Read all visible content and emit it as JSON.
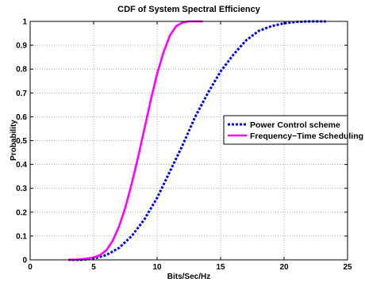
{
  "chart_data": {
    "type": "line",
    "title": "CDF of System Spectral Efficiency",
    "xlabel": "Bits/Sec/Hz",
    "ylabel": "Probability",
    "xlim": [
      0,
      25
    ],
    "ylim": [
      0,
      1
    ],
    "xticks": [
      "0",
      "5",
      "10",
      "15",
      "20",
      "25"
    ],
    "yticks": [
      "0",
      "0.1",
      "0.2",
      "0.3",
      "0.4",
      "0.5",
      "0.6",
      "0.7",
      "0.8",
      "0.9",
      "1"
    ],
    "grid": true,
    "legend_position": "right",
    "series": [
      {
        "name": "Power Control scheme",
        "color": "#0000ff",
        "style": "dotted",
        "x": [
          3.0,
          4.0,
          5.0,
          6.0,
          7.0,
          8.0,
          9.0,
          10.0,
          11.0,
          12.0,
          13.0,
          14.0,
          15.0,
          16.0,
          17.0,
          18.0,
          19.0,
          20.0,
          21.0,
          22.0,
          23.3
        ],
        "y": [
          0.0,
          0.0,
          0.005,
          0.02,
          0.05,
          0.1,
          0.17,
          0.26,
          0.37,
          0.48,
          0.6,
          0.7,
          0.79,
          0.86,
          0.92,
          0.96,
          0.98,
          0.992,
          0.998,
          1.0,
          1.0
        ]
      },
      {
        "name": "Frequency−Time Scheduling",
        "color": "#ff00ff",
        "style": "solid",
        "x": [
          3.0,
          4.0,
          5.0,
          5.5,
          6.0,
          6.5,
          7.0,
          7.5,
          8.0,
          8.5,
          9.0,
          9.5,
          10.0,
          10.5,
          11.0,
          11.5,
          12.0,
          12.5,
          13.0,
          13.6
        ],
        "y": [
          0.0,
          0.002,
          0.01,
          0.02,
          0.04,
          0.08,
          0.14,
          0.22,
          0.32,
          0.43,
          0.55,
          0.67,
          0.78,
          0.87,
          0.94,
          0.98,
          0.995,
          1.0,
          1.0,
          1.0
        ]
      }
    ]
  }
}
